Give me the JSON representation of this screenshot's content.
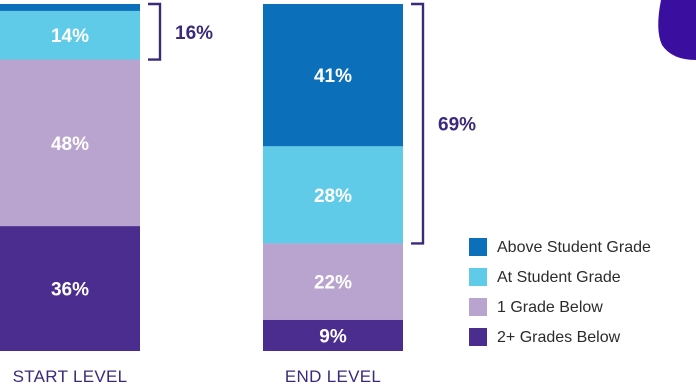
{
  "chart_data": {
    "type": "bar",
    "stacked": true,
    "categories": [
      "START LEVEL",
      "END LEVEL"
    ],
    "series": [
      {
        "key": "two_below",
        "name": "2+ Grades Below",
        "color": "#4b2d8f",
        "values": [
          36,
          9
        ],
        "labels": [
          "36%",
          "9%"
        ]
      },
      {
        "key": "one_below",
        "name": "1 Grade Below",
        "color": "#b9a4cf",
        "values": [
          48,
          22
        ],
        "labels": [
          "48%",
          "22%"
        ]
      },
      {
        "key": "at_grade",
        "name": "At Student Grade",
        "color": "#5fcbe8",
        "values": [
          14,
          28
        ],
        "labels": [
          "14%",
          "28%"
        ]
      },
      {
        "key": "above_grade",
        "name": "Above Student Grade",
        "color": "#0b6fb9",
        "values": [
          2,
          41
        ],
        "labels": [
          "",
          "41%"
        ]
      }
    ],
    "legend_order": [
      "above_grade",
      "at_grade",
      "one_below",
      "two_below"
    ],
    "legend_position": "bottom-right",
    "brackets": [
      {
        "category": "START LEVEL",
        "series": [
          "at_grade",
          "above_grade"
        ],
        "label": "16%"
      },
      {
        "category": "END LEVEL",
        "series": [
          "at_grade",
          "above_grade"
        ],
        "label": "69%"
      }
    ],
    "ylim": [
      0,
      100
    ],
    "grid": false
  }
}
